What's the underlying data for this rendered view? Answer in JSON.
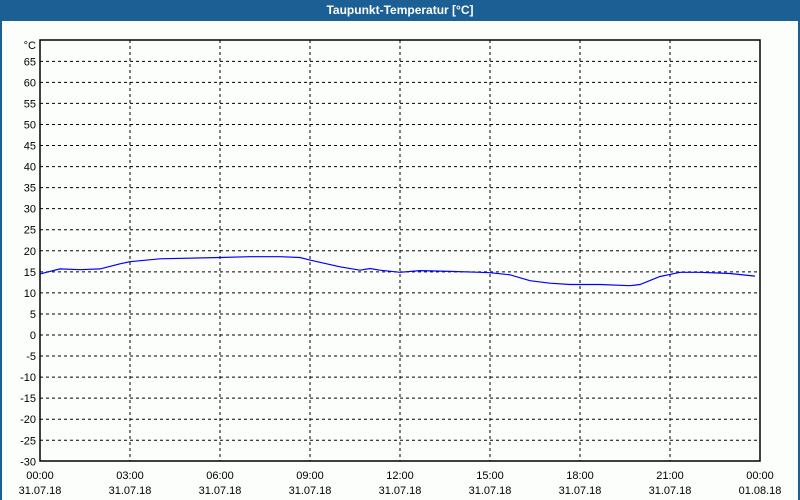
{
  "window": {
    "title": "Taupunkt-Temperatur [°C]"
  },
  "colors": {
    "titlebar": "#1c5f94",
    "line": "#0000ff",
    "background": "#fcfefc",
    "grid": "#000000"
  },
  "chart_data": {
    "type": "line",
    "title": "Taupunkt-Temperatur [°C]",
    "ylabel": "°C",
    "ylim": [
      -30,
      68
    ],
    "yticks": [
      65,
      60,
      55,
      50,
      45,
      40,
      35,
      30,
      25,
      20,
      15,
      10,
      5,
      0,
      -5,
      -10,
      -15,
      -20,
      -25,
      -30
    ],
    "xlim": [
      "31.07.18 00:00",
      "01.08.18 00:00"
    ],
    "xticks": [
      {
        "time": "00:00",
        "date": "31.07.18"
      },
      {
        "time": "03:00",
        "date": "31.07.18"
      },
      {
        "time": "06:00",
        "date": "31.07.18"
      },
      {
        "time": "09:00",
        "date": "31.07.18"
      },
      {
        "time": "12:00",
        "date": "31.07.18"
      },
      {
        "time": "15:00",
        "date": "31.07.18"
      },
      {
        "time": "18:00",
        "date": "31.07.18"
      },
      {
        "time": "21:00",
        "date": "31.07.18"
      },
      {
        "time": "00:00",
        "date": "01.08.18"
      }
    ],
    "grid": true,
    "series": [
      {
        "x": [
          "00:00",
          "00:40",
          "01:20",
          "02:00",
          "02:40",
          "03:00",
          "04:00",
          "06:00",
          "07:00",
          "08:00",
          "08:40",
          "09:00",
          "10:00",
          "10:40",
          "11:00",
          "11:20",
          "12:00",
          "12:40",
          "13:40",
          "14:40",
          "15:00",
          "15:40",
          "16:20",
          "17:00",
          "17:40",
          "18:40",
          "19:40",
          "20:00",
          "20:40",
          "21:00",
          "21:20",
          "22:00",
          "23:00",
          "23:50"
        ],
        "y": [
          14.5,
          15.7,
          15.5,
          15.7,
          16.9,
          17.4,
          18.1,
          18.4,
          18.6,
          18.6,
          18.4,
          17.8,
          16.2,
          15.4,
          15.8,
          15.4,
          14.9,
          15.3,
          15.1,
          14.9,
          14.8,
          14.3,
          12.9,
          12.3,
          12.0,
          12.0,
          11.7,
          12.0,
          13.9,
          14.4,
          14.9,
          14.9,
          14.6,
          14.0
        ]
      }
    ]
  }
}
